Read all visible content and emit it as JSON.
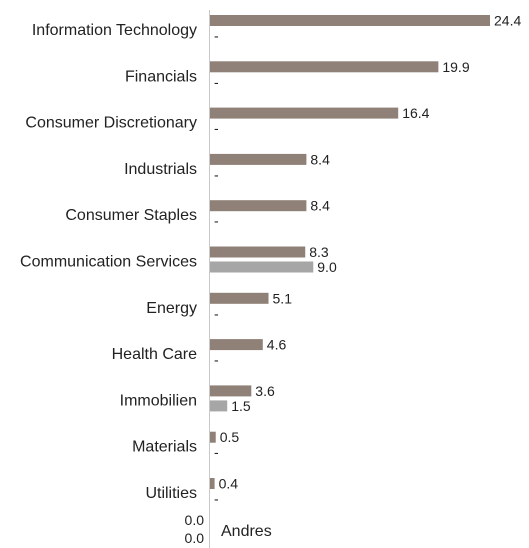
{
  "chart_data": {
    "type": "bar",
    "orientation": "horizontal",
    "categories": [
      "Information Technology",
      "Financials",
      "Consumer Discretionary",
      "Industrials",
      "Consumer Staples",
      "Communication Services",
      "Energy",
      "Health Care",
      "Immobilien",
      "Materials",
      "Utilities"
    ],
    "series": [
      {
        "color": "#8f8178",
        "values": [
          24.4,
          19.9,
          16.4,
          8.4,
          8.4,
          8.3,
          5.1,
          4.6,
          3.6,
          0.5,
          0.4
        ],
        "labels": [
          "24.4",
          "19.9",
          "16.4",
          "8.4",
          "8.4",
          "8.3",
          "5.1",
          "4.6",
          "3.6",
          "0.5",
          "0.4"
        ]
      },
      {
        "color": "#a6a6a6",
        "values": [
          null,
          null,
          null,
          null,
          null,
          9.0,
          null,
          null,
          1.5,
          null,
          null
        ],
        "labels": [
          "-",
          "-",
          "-",
          "-",
          "-",
          "9.0",
          "-",
          "-",
          "1.5",
          "-",
          "-"
        ]
      }
    ],
    "extra_category": {
      "label": "Andres",
      "values": [
        "0.0",
        "0.0"
      ]
    },
    "xlim": [
      0,
      24.4
    ],
    "grid": false
  }
}
